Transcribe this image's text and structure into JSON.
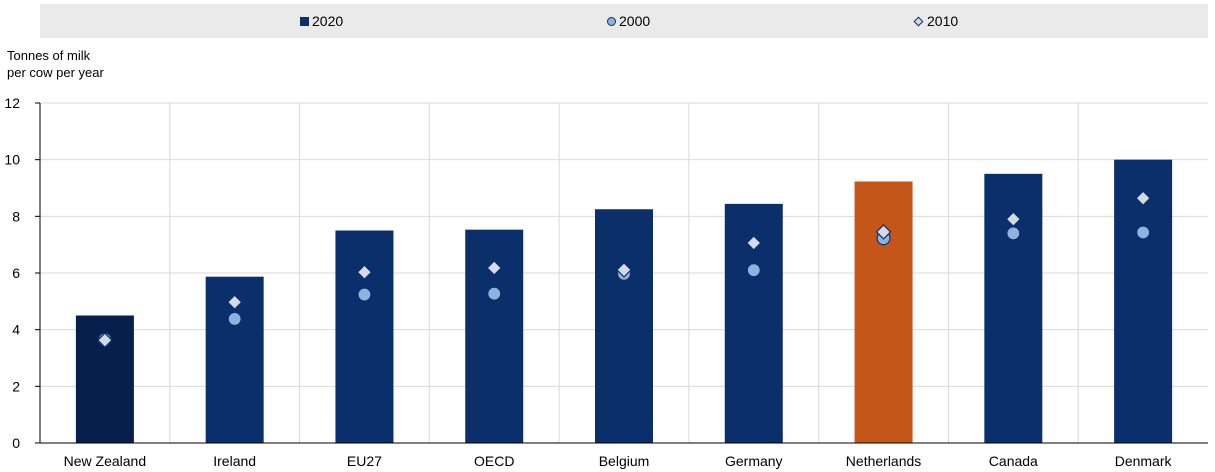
{
  "chart_data": {
    "type": "bar",
    "title": "",
    "ylabel_lines": [
      "Tonnes of milk",
      "per cow per year"
    ],
    "xlabel": "",
    "ylim": [
      0,
      12
    ],
    "yticks": [
      0,
      2,
      4,
      6,
      8,
      10,
      12
    ],
    "categories": [
      "New Zealand",
      "Ireland",
      "EU27",
      "OECD",
      "Belgium",
      "Germany",
      "Netherlands",
      "Canada",
      "Denmark"
    ],
    "series": [
      {
        "name": "2020",
        "marker": "bar",
        "values": [
          4.5,
          5.87,
          7.5,
          7.53,
          8.25,
          8.44,
          9.23,
          9.5,
          10.0
        ]
      },
      {
        "name": "2000",
        "marker": "circle",
        "values": [
          3.65,
          4.38,
          5.24,
          5.27,
          5.97,
          6.1,
          7.23,
          7.4,
          7.43
        ]
      },
      {
        "name": "2010",
        "marker": "diamond",
        "values": [
          3.63,
          4.97,
          6.03,
          6.18,
          6.11,
          7.06,
          7.45,
          7.9,
          8.64
        ]
      }
    ],
    "grid": true,
    "legend_position": "top",
    "colors": {
      "bar_default": "#0b2f6b",
      "bar_first": "#061f4b",
      "bar_highlight": "#c4561a",
      "circle_fill": "#8cb4dc",
      "diamond_fill": "#d4dbe7",
      "marker_edge": "#0b2f6b",
      "grid": "#d9d9d9",
      "legend_background": "#eaeaea"
    },
    "highlight_category": "Netherlands"
  }
}
